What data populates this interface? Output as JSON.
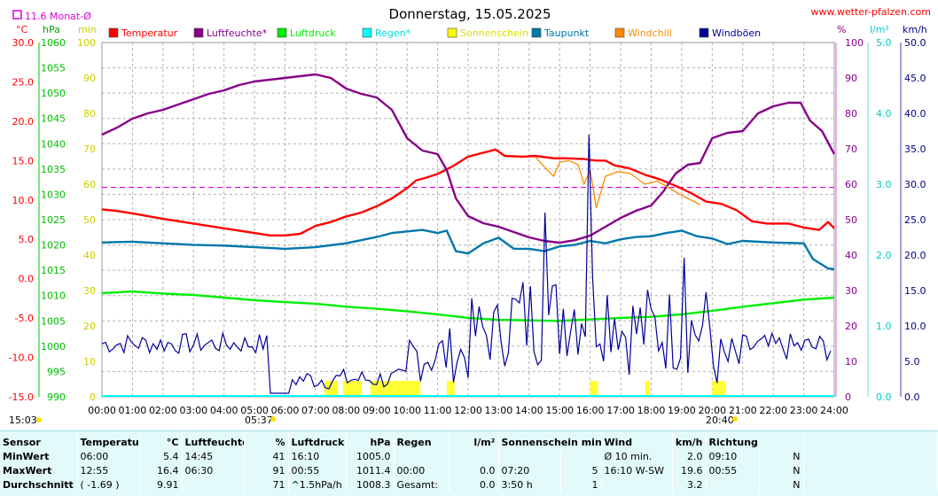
{
  "header": {
    "title": "Donnerstag, 15.05.2025",
    "site": "www.wetter-pfalzen.com",
    "monthly_avg_label": "11.6 Monat-Ø"
  },
  "chart_data": {
    "type": "line",
    "title": "Donnerstag, 15.05.2025",
    "x_ticks": [
      "00:00",
      "01:00",
      "02:00",
      "03:00",
      "04:00",
      "05:00",
      "06:00",
      "07:00",
      "08:00",
      "09:00",
      "10:00",
      "11:00",
      "12:00",
      "13:00",
      "14:00",
      "15:00",
      "16:00",
      "17:00",
      "18:00",
      "19:00",
      "20:00",
      "21:00",
      "22:00",
      "23:00",
      "24:00"
    ],
    "x_range_hours": [
      0,
      24
    ],
    "grid": true,
    "axes": {
      "temp_c": {
        "unit": "°C",
        "range": [
          -15,
          30
        ],
        "ticks": [
          "30.0",
          "25.0",
          "20.0",
          "15.0",
          "10.0",
          "5.0",
          "0.0",
          "-5.0",
          "-10.0",
          "-15.0"
        ],
        "color": "#ff0000"
      },
      "pressure_hpa": {
        "unit": "hPa",
        "range": [
          990,
          1060
        ],
        "ticks": [
          "1060",
          "1055",
          "1050",
          "1045",
          "1040",
          "1035",
          "1030",
          "1025",
          "1020",
          "1015",
          "1010",
          "1005",
          "1000",
          "995",
          "990"
        ],
        "color": "#00bb00"
      },
      "sun_min": {
        "unit": "min",
        "range": [
          0,
          100
        ],
        "ticks": [
          "100",
          "90",
          "80",
          "70",
          "60",
          "50",
          "40",
          "30",
          "20",
          "10",
          "0"
        ],
        "color": "#cccc00"
      },
      "humidity_pct": {
        "unit": "%",
        "range": [
          0,
          100
        ],
        "ticks": [
          "100",
          "90",
          "80",
          "70",
          "60",
          "50",
          "40",
          "30",
          "20",
          "10",
          "0"
        ],
        "color": "#880088"
      },
      "rain_lm2": {
        "unit": "l/m²",
        "range": [
          0,
          5
        ],
        "ticks": [
          "5.0",
          "4.0",
          "3.0",
          "2.0",
          "1.0",
          "0.0"
        ],
        "color": "#00cccc"
      },
      "wind_kmh": {
        "unit": "km/h",
        "range": [
          0,
          50
        ],
        "ticks": [
          "50.0",
          "45.0",
          "40.0",
          "35.0",
          "30.0",
          "25.0",
          "20.0",
          "15.0",
          "10.0",
          "5.0",
          "0.0"
        ],
        "color": "#000080"
      }
    },
    "reference_line": {
      "label": "11.6 Monat-Ø",
      "value_c": 11.6,
      "color": "#dd00dd"
    },
    "sunrise": "05:37",
    "sunset": "20:40",
    "corner_time": "15:03",
    "legend": [
      {
        "name": "Temperatur",
        "color": "#ff0000"
      },
      {
        "name": "Luftfeuchte*",
        "color": "#880088"
      },
      {
        "name": "Luftdruck",
        "color": "#00ee00"
      },
      {
        "name": "Regen*",
        "color": "#00ffff"
      },
      {
        "name": "Sonnenschein",
        "color": "#ffff00"
      },
      {
        "name": "Taupunkt",
        "color": "#0077aa"
      },
      {
        "name": "Windchill",
        "color": "#ff8800"
      },
      {
        "name": "Windböen",
        "color": "#000099"
      }
    ],
    "series": [
      {
        "name": "Temperatur",
        "axis": "temp_c",
        "color": "#ff0000",
        "points": [
          [
            0,
            8.8
          ],
          [
            0.5,
            8.6
          ],
          [
            1,
            8.3
          ],
          [
            2,
            7.6
          ],
          [
            3,
            7.0
          ],
          [
            4,
            6.4
          ],
          [
            5,
            5.8
          ],
          [
            5.5,
            5.5
          ],
          [
            6.0,
            5.5
          ],
          [
            6.5,
            5.7
          ],
          [
            7,
            6.7
          ],
          [
            7.5,
            7.2
          ],
          [
            8,
            7.9
          ],
          [
            8.5,
            8.4
          ],
          [
            9,
            9.2
          ],
          [
            9.5,
            10.2
          ],
          [
            10,
            11.5
          ],
          [
            10.3,
            12.5
          ],
          [
            10.6,
            12.8
          ],
          [
            11,
            13.3
          ],
          [
            11.5,
            14.3
          ],
          [
            12,
            15.5
          ],
          [
            12.5,
            16.0
          ],
          [
            12.9,
            16.4
          ],
          [
            13.2,
            15.6
          ],
          [
            13.8,
            15.5
          ],
          [
            14.2,
            15.6
          ],
          [
            14.8,
            15.3
          ],
          [
            15.2,
            15.3
          ],
          [
            15.8,
            15.2
          ],
          [
            16.2,
            15.0
          ],
          [
            16.5,
            15.0
          ],
          [
            16.8,
            14.4
          ],
          [
            17.3,
            14.0
          ],
          [
            17.8,
            13.2
          ],
          [
            18.3,
            12.6
          ],
          [
            18.8,
            11.8
          ],
          [
            19.3,
            10.9
          ],
          [
            19.8,
            9.8
          ],
          [
            20.3,
            9.5
          ],
          [
            20.8,
            8.7
          ],
          [
            21.3,
            7.3
          ],
          [
            21.8,
            7.0
          ],
          [
            22.5,
            7.0
          ],
          [
            23,
            6.5
          ],
          [
            23.5,
            6.2
          ],
          [
            23.8,
            7.2
          ],
          [
            24,
            6.4
          ]
        ]
      },
      {
        "name": "Luftfeuchte*",
        "axis": "humidity_pct",
        "color": "#880088",
        "points": [
          [
            0,
            74
          ],
          [
            0.5,
            76
          ],
          [
            1,
            78.5
          ],
          [
            1.5,
            80
          ],
          [
            2,
            81
          ],
          [
            2.5,
            82.5
          ],
          [
            3,
            84
          ],
          [
            3.5,
            85.5
          ],
          [
            4,
            86.5
          ],
          [
            4.5,
            88
          ],
          [
            5,
            89
          ],
          [
            5.5,
            89.5
          ],
          [
            6,
            90
          ],
          [
            6.5,
            90.5
          ],
          [
            7,
            91
          ],
          [
            7.5,
            90
          ],
          [
            8,
            87
          ],
          [
            8.5,
            85.5
          ],
          [
            9,
            84.5
          ],
          [
            9.5,
            81
          ],
          [
            10,
            73
          ],
          [
            10.5,
            69.5
          ],
          [
            11,
            68.5
          ],
          [
            11.3,
            64
          ],
          [
            11.6,
            56
          ],
          [
            12,
            51
          ],
          [
            12.5,
            49
          ],
          [
            13,
            48
          ],
          [
            13.5,
            46.5
          ],
          [
            14,
            45
          ],
          [
            14.5,
            44
          ],
          [
            15,
            43.5
          ],
          [
            15.5,
            44.2
          ],
          [
            16,
            45.5
          ],
          [
            16.5,
            48
          ],
          [
            17,
            50.5
          ],
          [
            17.5,
            52.5
          ],
          [
            18,
            54
          ],
          [
            18.4,
            58
          ],
          [
            18.8,
            63
          ],
          [
            19.2,
            65.5
          ],
          [
            19.6,
            66
          ],
          [
            20,
            73
          ],
          [
            20.5,
            74.5
          ],
          [
            21,
            75
          ],
          [
            21.5,
            80
          ],
          [
            22,
            82
          ],
          [
            22.5,
            83
          ],
          [
            22.9,
            83
          ],
          [
            23.2,
            78
          ],
          [
            23.6,
            75
          ],
          [
            24,
            68.5
          ]
        ]
      },
      {
        "name": "Luftdruck",
        "axis": "pressure_hpa",
        "color": "#00ee00",
        "points": [
          [
            0,
            1010.5
          ],
          [
            1,
            1010.8
          ],
          [
            2,
            1010.4
          ],
          [
            3,
            1010.1
          ],
          [
            4,
            1009.6
          ],
          [
            5,
            1009.1
          ],
          [
            6,
            1008.7
          ],
          [
            7,
            1008.4
          ],
          [
            8,
            1007.8
          ],
          [
            9,
            1007.4
          ],
          [
            10,
            1006.9
          ],
          [
            11,
            1006.3
          ],
          [
            12,
            1005.6
          ],
          [
            13,
            1005.2
          ],
          [
            14,
            1005.1
          ],
          [
            15,
            1005.0
          ],
          [
            16,
            1005.3
          ],
          [
            17,
            1005.6
          ],
          [
            18,
            1005.8
          ],
          [
            19,
            1006.3
          ],
          [
            20,
            1007.0
          ],
          [
            21,
            1007.8
          ],
          [
            22,
            1008.5
          ],
          [
            23,
            1009.2
          ],
          [
            24,
            1009.6
          ]
        ]
      },
      {
        "name": "Taupunkt",
        "axis": "temp_c",
        "color": "#0077aa",
        "points": [
          [
            0,
            4.6
          ],
          [
            1,
            4.7
          ],
          [
            2,
            4.5
          ],
          [
            3,
            4.3
          ],
          [
            4,
            4.2
          ],
          [
            5,
            4.0
          ],
          [
            6,
            3.8
          ],
          [
            7,
            4.0
          ],
          [
            8,
            4.5
          ],
          [
            9,
            5.3
          ],
          [
            9.5,
            5.8
          ],
          [
            10,
            6.0
          ],
          [
            10.5,
            6.2
          ],
          [
            11,
            5.8
          ],
          [
            11.3,
            6.1
          ],
          [
            11.6,
            3.5
          ],
          [
            12,
            3.2
          ],
          [
            12.5,
            4.5
          ],
          [
            13,
            5.2
          ],
          [
            13.5,
            3.8
          ],
          [
            14,
            3.8
          ],
          [
            14.5,
            3.5
          ],
          [
            15,
            4.1
          ],
          [
            15.5,
            4.3
          ],
          [
            16,
            4.8
          ],
          [
            16.5,
            4.5
          ],
          [
            17,
            5.0
          ],
          [
            17.5,
            5.3
          ],
          [
            18,
            5.4
          ],
          [
            18.5,
            5.8
          ],
          [
            19,
            6.1
          ],
          [
            19.5,
            5.4
          ],
          [
            20,
            5.1
          ],
          [
            20.5,
            4.4
          ],
          [
            21,
            4.8
          ],
          [
            22,
            4.6
          ],
          [
            23,
            4.5
          ],
          [
            23.3,
            2.5
          ],
          [
            23.8,
            1.3
          ],
          [
            24,
            1.2
          ]
        ]
      },
      {
        "name": "Windchill",
        "axis": "temp_c",
        "color": "#ff8800",
        "points": [
          [
            14.2,
            15.5
          ],
          [
            14.5,
            14.2
          ],
          [
            14.8,
            13.0
          ],
          [
            15.0,
            14.8
          ],
          [
            15.3,
            15.0
          ],
          [
            15.6,
            14.5
          ],
          [
            15.8,
            12.0
          ],
          [
            16.0,
            13.8
          ],
          [
            16.2,
            9.0
          ],
          [
            16.5,
            13.0
          ],
          [
            16.9,
            13.6
          ],
          [
            17.3,
            13.4
          ],
          [
            17.8,
            12.0
          ],
          [
            18.2,
            12.4
          ],
          [
            18.6,
            11.5
          ],
          [
            18.9,
            10.8
          ],
          [
            19.2,
            10.2
          ],
          [
            19.6,
            9.4
          ]
        ]
      }
    ],
    "sunshine_blocks_hours": [
      [
        7.3,
        7.7
      ],
      [
        7.9,
        8.5
      ],
      [
        8.8,
        10.4
      ],
      [
        11.3,
        11.5
      ],
      [
        16.0,
        16.2
      ],
      [
        17.8,
        17.9
      ],
      [
        20.0,
        20.4
      ]
    ],
    "gust_note": "gusts fluctuate 0–20 km/h, peak ~37 km/h near 16:00"
  },
  "stats": {
    "headers": [
      "Sensor",
      "Temperatur",
      "°C",
      "Luftfeuchte",
      "%",
      "Luftdruck",
      "hPa",
      "Regen",
      "l/m²",
      "Sonnenschein min",
      "Wind",
      "km/h",
      "Richtung"
    ],
    "rows": [
      {
        "label": "MinWert",
        "cells": [
          "06:00",
          "5.4",
          "14:45",
          "41",
          "16:10",
          "1005.0",
          "",
          "",
          "",
          "",
          "Ø 10 min.",
          "2.0",
          "09:10",
          "N"
        ]
      },
      {
        "label": "MaxWert",
        "cells": [
          "12:55",
          "16.4",
          "06:30",
          "91",
          "00:55",
          "1011.4",
          "00:00",
          "0.0",
          "07:20",
          "5",
          "16:10  W-SW",
          "19.6",
          "00:55",
          "N"
        ]
      },
      {
        "label": "Durchschnitt",
        "cells": [
          "( -1.69 )",
          "9.91",
          "",
          "71",
          "^1.5hPa/h",
          "1008.3",
          "Gesamt:",
          "0.0",
          "3:50 h",
          "1",
          "",
          "3.2",
          "",
          "N"
        ]
      }
    ]
  }
}
